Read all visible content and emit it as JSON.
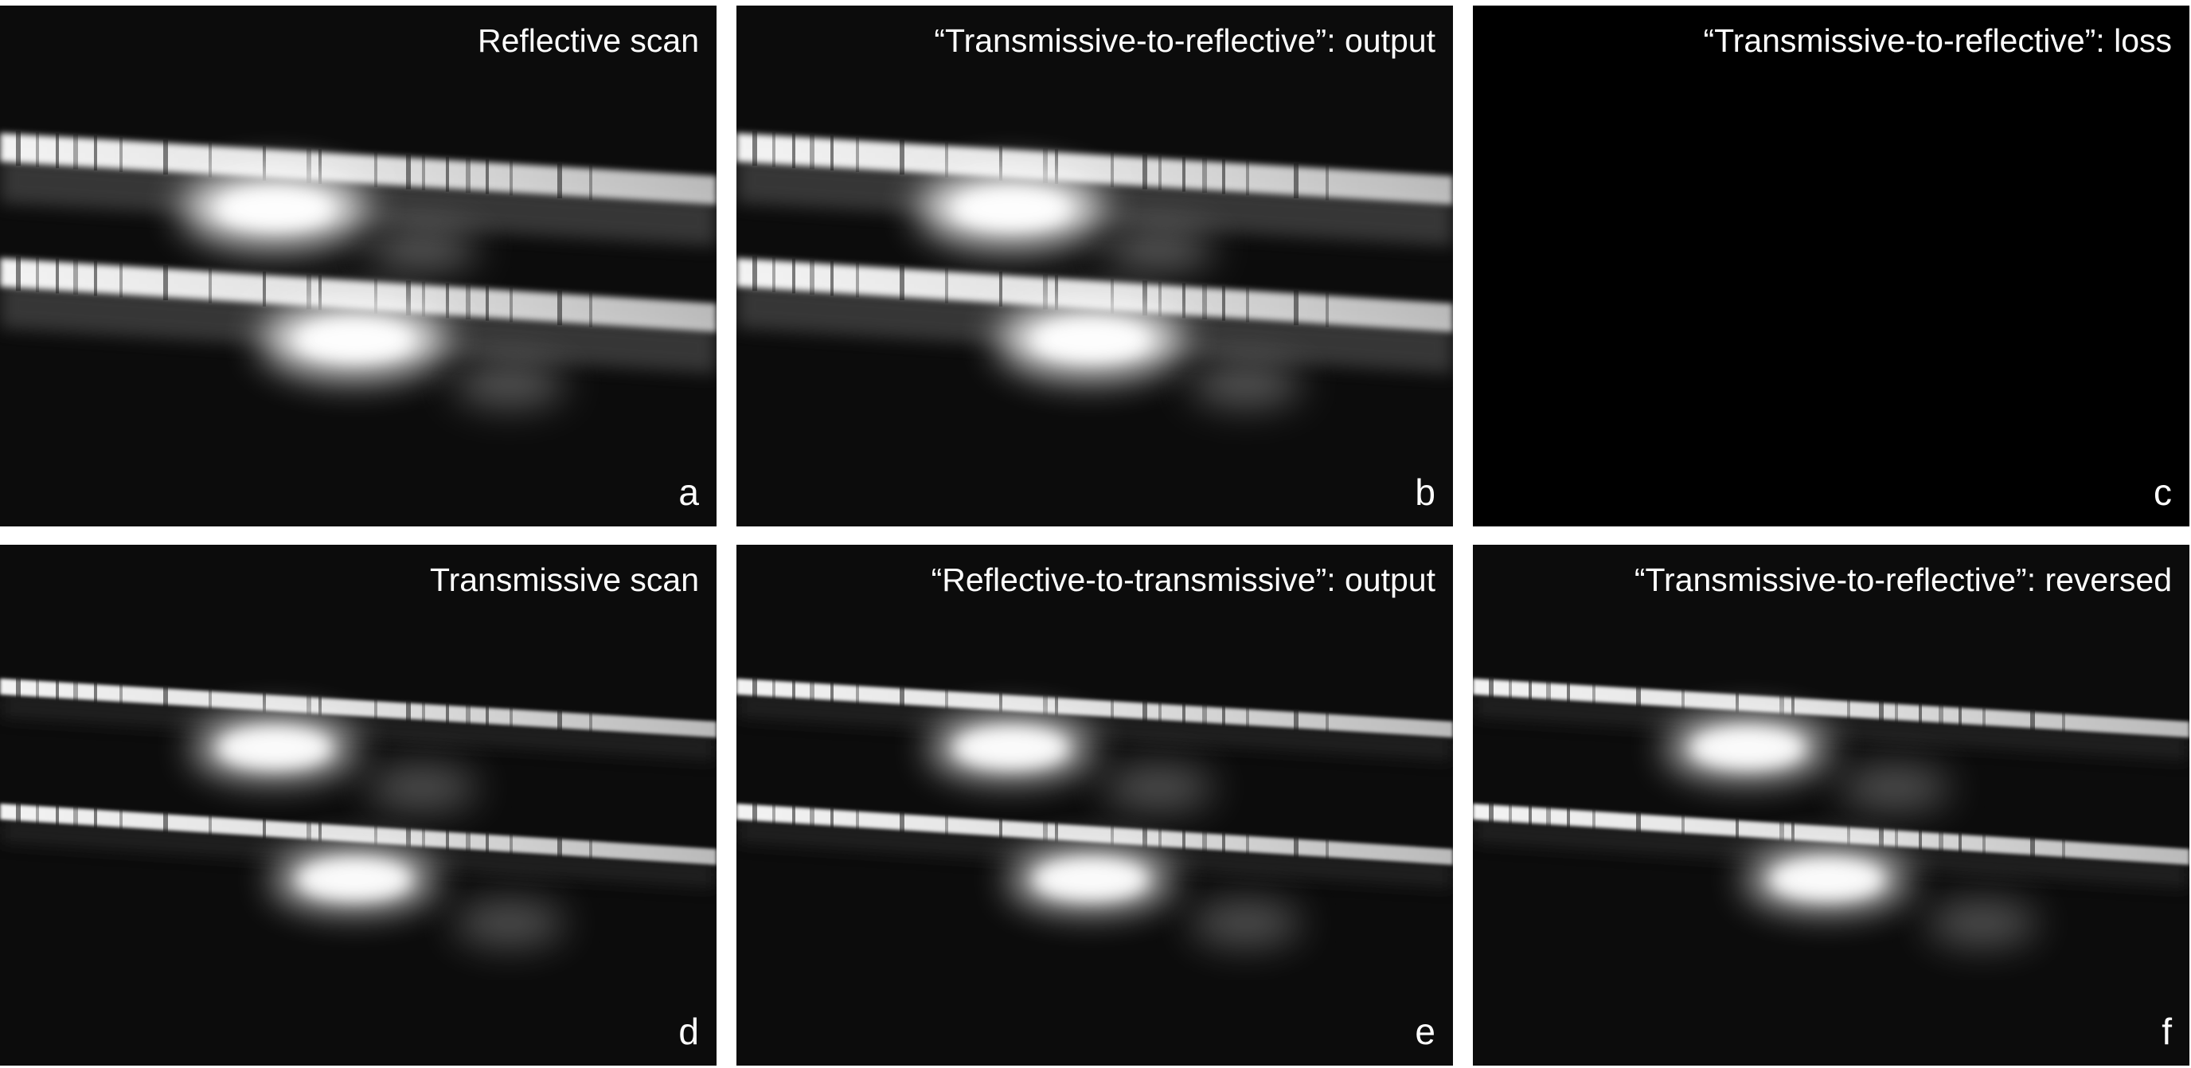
{
  "figure": {
    "panels": [
      {
        "title": "Reflective scan",
        "letter": "a",
        "variant": "reflective"
      },
      {
        "title": "“Transmissive-to-reflective”: output",
        "letter": "b",
        "variant": "reflective"
      },
      {
        "title": "“Transmissive-to-reflective”: loss",
        "letter": "c",
        "variant": "blank"
      },
      {
        "title": "Transmissive scan",
        "letter": "d",
        "variant": "transmissive"
      },
      {
        "title": "“Reflective-to-transmissive”: output",
        "letter": "e",
        "variant": "transmissive"
      },
      {
        "title": "“Transmissive-to-reflective”: reversed",
        "letter": "f",
        "variant": "transmissive"
      }
    ],
    "colors": {
      "page_background": "#ffffff",
      "panel_background": "#0c0c0c",
      "label_color": "#ffffff"
    }
  }
}
